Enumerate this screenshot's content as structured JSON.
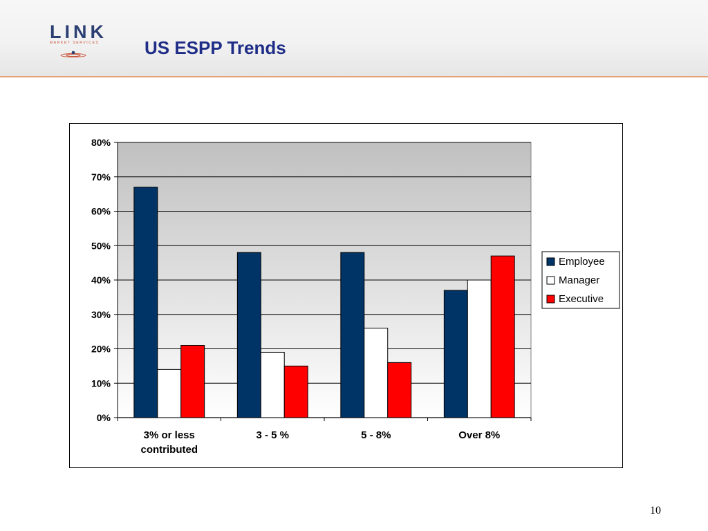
{
  "logo": {
    "word": "LINK",
    "subtitle": "MARKET SERVICES"
  },
  "slide": {
    "title": "US ESPP Trends",
    "page_number": "10"
  },
  "colors": {
    "title": "#1f2d87",
    "header_rule": "#e8a27a",
    "logo_text": "#2c3f73",
    "logo_accent": "#c8553a"
  },
  "chart_data": {
    "type": "bar",
    "title": "",
    "xlabel": "",
    "ylabel": "",
    "categories": [
      [
        "3% or less",
        "contributed"
      ],
      [
        "3 - 5 %"
      ],
      [
        "5 - 8%"
      ],
      [
        "Over 8%"
      ]
    ],
    "series": [
      {
        "name": "Employee",
        "color": "#003366",
        "values": [
          67,
          48,
          48,
          37
        ]
      },
      {
        "name": "Manager",
        "color": "#ffffff",
        "values": [
          14,
          19,
          26,
          40
        ]
      },
      {
        "name": "Executive",
        "color": "#ff0000",
        "values": [
          21,
          15,
          16,
          47
        ]
      }
    ],
    "y_ticks": [
      "0%",
      "10%",
      "20%",
      "30%",
      "40%",
      "50%",
      "60%",
      "70%",
      "80%"
    ],
    "ylim": [
      0,
      80
    ],
    "y_unit": "%",
    "grid": true,
    "legend": "right",
    "plot_background": "gradient gray to white"
  }
}
